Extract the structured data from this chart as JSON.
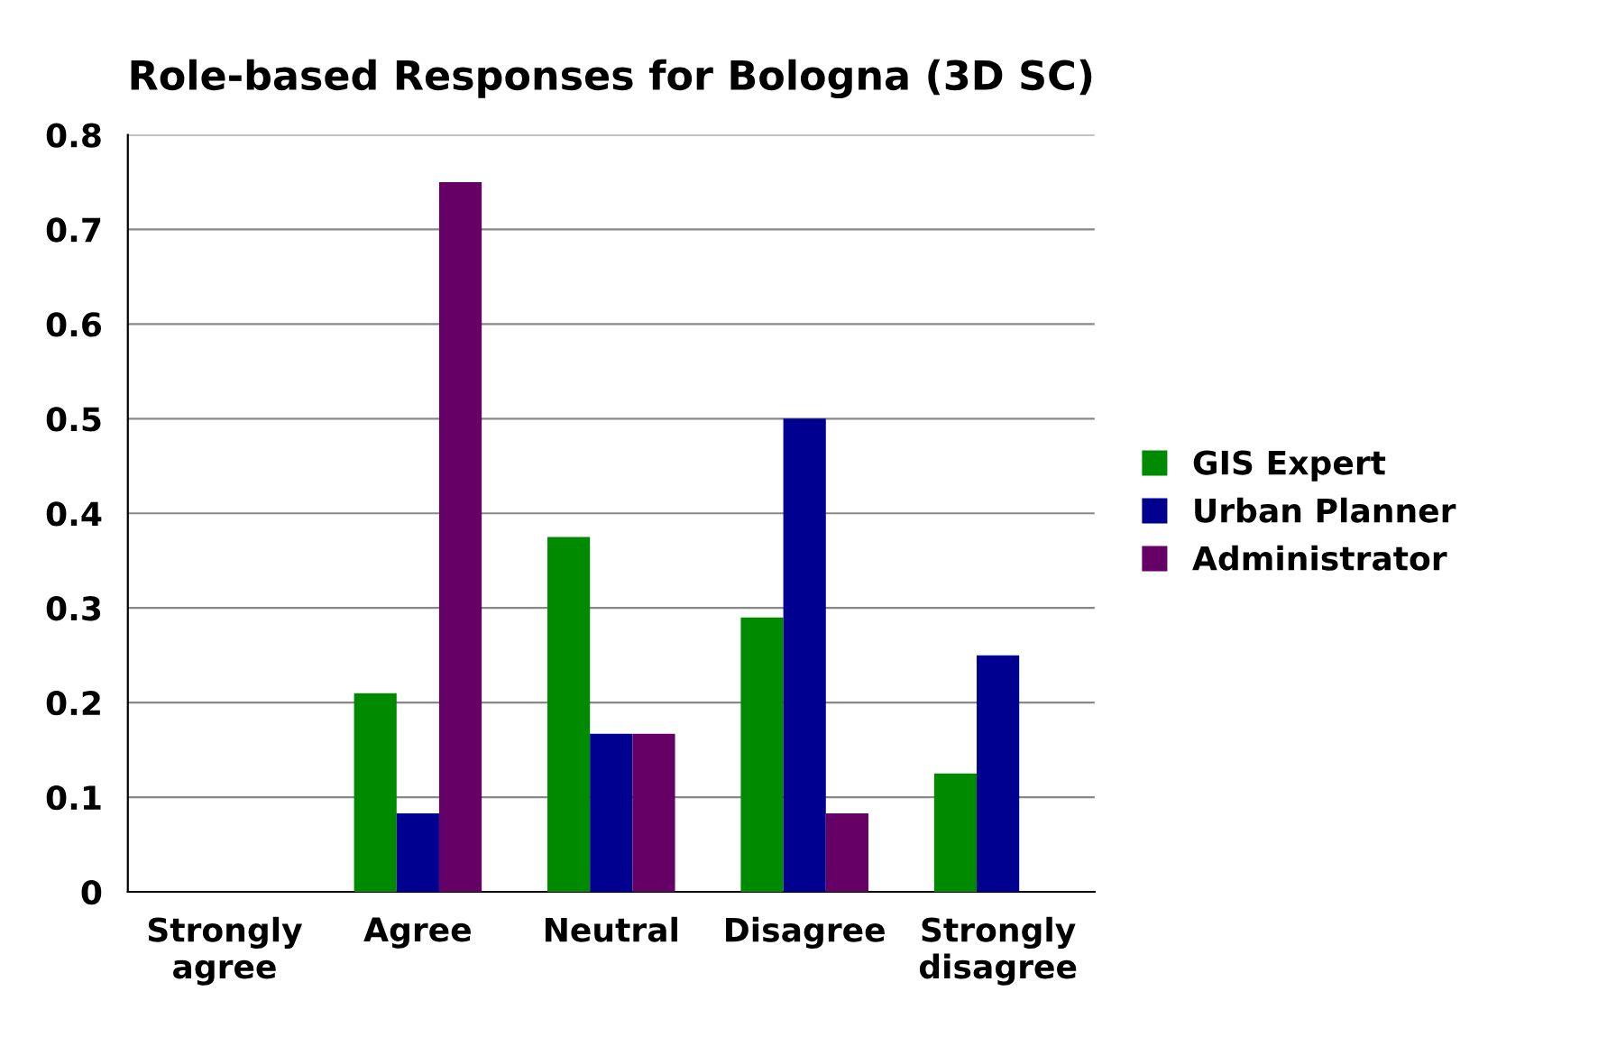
{
  "chart_data": {
    "type": "bar",
    "title": "Role-based Responses for Bologna (3D SC)",
    "categories": [
      "Strongly\nagree",
      "Agree",
      "Neutral",
      "Disagree",
      "Strongly\ndisagree"
    ],
    "series": [
      {
        "name": "GIS Expert",
        "color": "#008a00",
        "values": [
          0,
          0.21,
          0.375,
          0.29,
          0.125
        ]
      },
      {
        "name": "Urban Planner",
        "color": "#000090",
        "values": [
          0,
          0.083,
          0.167,
          0.5,
          0.25
        ]
      },
      {
        "name": "Administrator",
        "color": "#660066",
        "values": [
          0,
          0.75,
          0.167,
          0.083,
          0
        ]
      }
    ],
    "ylim": [
      0,
      0.8
    ],
    "yticks": [
      0,
      0.1,
      0.2,
      0.3,
      0.4,
      0.5,
      0.6,
      0.7,
      0.8
    ],
    "grid": "y",
    "legend": "right"
  }
}
